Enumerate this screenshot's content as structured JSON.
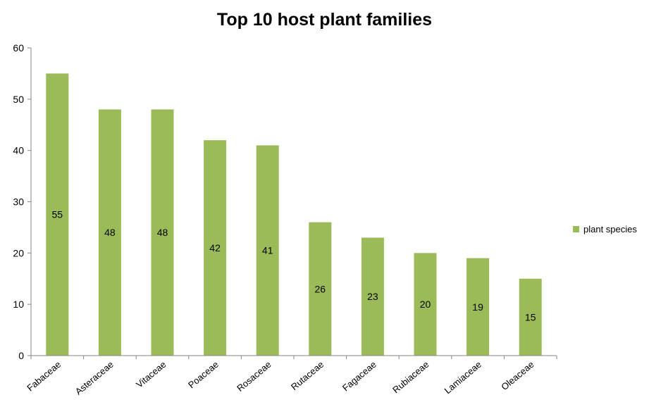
{
  "chart_data": {
    "type": "bar",
    "title": "Top 10 host plant families",
    "categories": [
      "Fabaceae",
      "Asteraceae",
      "Vitaceae",
      "Poaceae",
      "Rosaceae",
      "Rutaceae",
      "Fagaceae",
      "Rubiaceae",
      "Lamiaceae",
      "Oleaceae"
    ],
    "series": [
      {
        "name": "plant species",
        "values": [
          55,
          48,
          48,
          42,
          41,
          26,
          23,
          20,
          19,
          15
        ],
        "color": "#9BBB59"
      }
    ],
    "y_ticks": [
      0,
      10,
      20,
      30,
      40,
      50,
      60
    ],
    "ylim": [
      0,
      60
    ],
    "xlabel": "",
    "ylabel": "",
    "grid": false,
    "legend_position": "right",
    "data_labels": "inside-center"
  }
}
